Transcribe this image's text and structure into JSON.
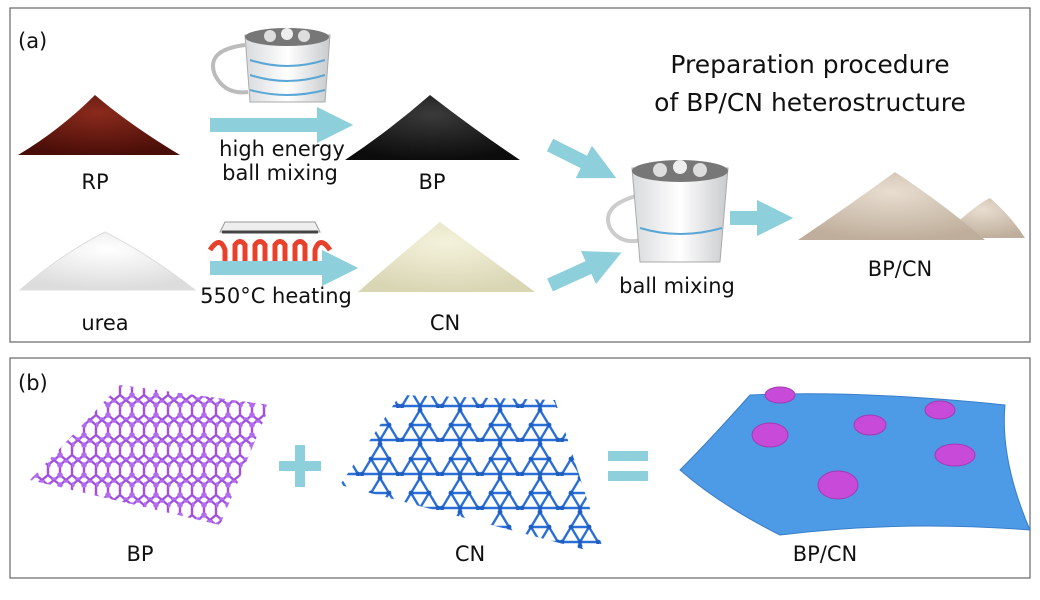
{
  "panel_a": {
    "label": "(a)",
    "title_lines": [
      "Preparation procedure",
      "of  BP/CN heterostructure"
    ],
    "nodes": [
      {
        "label": "RP"
      },
      {
        "label": "BP"
      },
      {
        "label": "urea"
      },
      {
        "label": "CN"
      },
      {
        "label": "BP/CN"
      }
    ],
    "steps": [
      {
        "label_lines": [
          "high energy",
          "ball mixing"
        ]
      },
      {
        "label": "550°C heating"
      },
      {
        "label": "ball mixing"
      }
    ]
  },
  "panel_b": {
    "label": "(b)",
    "items": [
      {
        "label": "BP"
      },
      {
        "label": "CN"
      },
      {
        "label": "BP/CN"
      }
    ]
  }
}
